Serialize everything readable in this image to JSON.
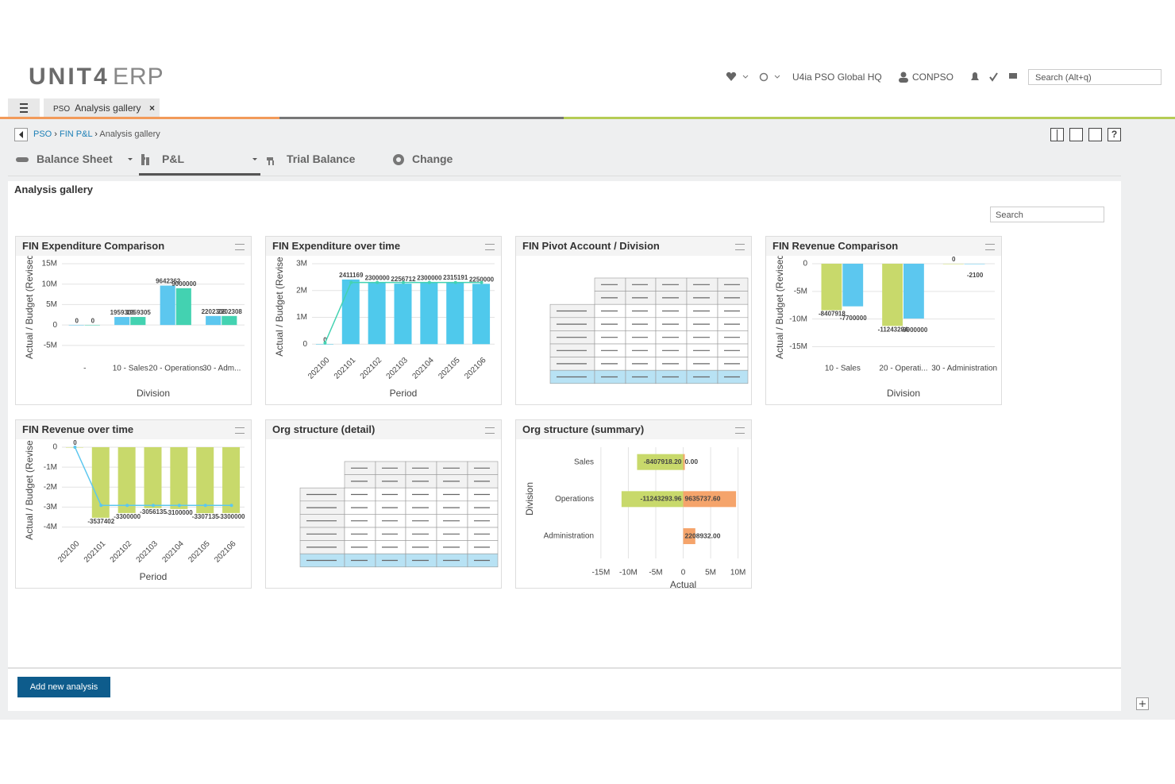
{
  "header": {
    "logo": "UNIT4",
    "product": "ERP",
    "company": "U4ia PSO Global HQ",
    "user": "CONPSO",
    "search": "Search (Alt+q)"
  },
  "tab": {
    "prefix": "PSO",
    "label": "Analysis gallery"
  },
  "breadcrumb": [
    "PSO",
    "FIN P&L",
    "Analysis gallery"
  ],
  "nav": [
    "Balance Sheet",
    "P&L",
    "Trial Balance",
    "Change"
  ],
  "section_title": "Analysis gallery",
  "gallery_search": "Search",
  "tables": [
    "FIN Pivot Account / Division",
    "Org structure (detail)"
  ],
  "button": "Add new analysis",
  "chart_data": [
    {
      "type": "bar",
      "title": "FIN Expenditure Comparison",
      "ylabel": "Actual / Budget (Revised",
      "xlabel": "Division",
      "categories": [
        "-",
        "10 - Sales",
        "20 - Operations",
        "30 - Adm..."
      ],
      "series": [
        {
          "color": "#5cc7ef",
          "kind": "bar",
          "values": [
            0,
            1959305,
            9642362,
            2202308
          ]
        },
        {
          "color": "#43d2b1",
          "kind": "bar",
          "values": [
            0,
            1959305,
            9000000,
            2202308
          ]
        }
      ],
      "ylim": [
        -6000000,
        15000000
      ],
      "yticks": [
        {
          "value": -5000000,
          "label": "-5M"
        },
        0,
        {
          "value": 5000000,
          "label": "5M"
        },
        {
          "value": 10000000,
          "label": "10M"
        },
        {
          "value": 15000000,
          "label": "15M"
        }
      ],
      "grid": true
    },
    {
      "type": "bar",
      "title": "FIN Expenditure over time",
      "ylabel": "Actual / Budget (Revise",
      "xlabel": "Period",
      "categories": [
        "202100",
        "202101",
        "202102",
        "202103",
        "202104",
        "202105",
        "202106"
      ],
      "series": [
        {
          "color": "#4fc9ec",
          "kind": "bar",
          "values": [
            0,
            2411169,
            2300000,
            2256712,
            2300000,
            2315191,
            2250000
          ]
        },
        {
          "color": "#43d2b1",
          "kind": "line",
          "values": [
            44789,
            2300000,
            2300000,
            2300000,
            2300000,
            2300000,
            2300000
          ]
        }
      ],
      "ylim": [
        -200000,
        3000000
      ],
      "yticks": [
        0,
        {
          "value": 1000000,
          "label": "1M"
        },
        {
          "value": 2000000,
          "label": "2M"
        },
        {
          "value": 3000000,
          "label": "3M"
        }
      ],
      "grid": true
    },
    {
      "type": "bar",
      "title": "FIN Revenue Comparison",
      "ylabel": "Actual / Budget (Revised",
      "xlabel": "Division",
      "categories": [
        "10 - Sales",
        "20 - Operati...",
        "30 - Administration"
      ],
      "series": [
        {
          "color": "#c8d96b",
          "kind": "bar",
          "values": [
            -8407918,
            -11243294,
            0
          ]
        },
        {
          "color": "#5cc7ef",
          "kind": "bar",
          "values": [
            -7700000,
            -9900000,
            -2100
          ]
        }
      ],
      "ylim": [
        -15500000,
        0
      ],
      "yticks": [
        {
          "value": -15000000,
          "label": "-15M"
        },
        {
          "value": -10000000,
          "label": "-10M"
        },
        {
          "value": -5000000,
          "label": "-5M"
        },
        0
      ],
      "grid": true
    },
    {
      "type": "bar",
      "title": "FIN Revenue over time",
      "ylabel": "Actual / Budget (Revise",
      "xlabel": "Period",
      "categories": [
        "202100",
        "202101",
        "202102",
        "202103",
        "202104",
        "202105",
        "202106"
      ],
      "series": [
        {
          "color": "#c8d96b",
          "kind": "bar",
          "values": [
            0,
            -3537402,
            -3300000,
            -3056135,
            -3100000,
            -3307135,
            -3300000
          ]
        },
        {
          "color": "#5cc7ef",
          "kind": "line",
          "values": [
            0,
            -2914500,
            -2914500,
            -2914500,
            -2914500,
            -2914500,
            -2914500
          ]
        }
      ],
      "ylim": [
        -4300000,
        0
      ],
      "yticks": [
        {
          "value": -4000000,
          "label": "-4M"
        },
        {
          "value": -3000000,
          "label": "-3M"
        },
        {
          "value": -2000000,
          "label": "-2M"
        },
        {
          "value": -1000000,
          "label": "-1M"
        },
        0
      ],
      "grid": true
    },
    {
      "type": "barh",
      "title": "Org structure (summary)",
      "ylabel": "Division",
      "xlabel": "Actual",
      "categories": [
        "Sales",
        "Operations",
        "Administration"
      ],
      "series": [
        {
          "color": "#c8d96b",
          "kind": "bar",
          "values": [
            -8407918.2,
            -11243293.96,
            null
          ],
          "value_labels": [
            "-8407918.20",
            "-11243293.96",
            null
          ]
        },
        {
          "color": "#f5a46b",
          "kind": "bar",
          "values": [
            0,
            9635737.6,
            2208932
          ],
          "value_labels": [
            "0.00",
            "9635737.60",
            "2208932.00"
          ]
        }
      ],
      "xlim": [
        -16000000,
        11500000
      ],
      "xticks": [
        {
          "value": -15000000,
          "label": "-15M"
        },
        {
          "value": -10000000,
          "label": "-10M"
        },
        {
          "value": -5000000,
          "label": "-5M"
        },
        0,
        {
          "value": 5000000,
          "label": "5M"
        },
        {
          "value": 10000000,
          "label": "10M"
        }
      ],
      "grid": true
    }
  ]
}
